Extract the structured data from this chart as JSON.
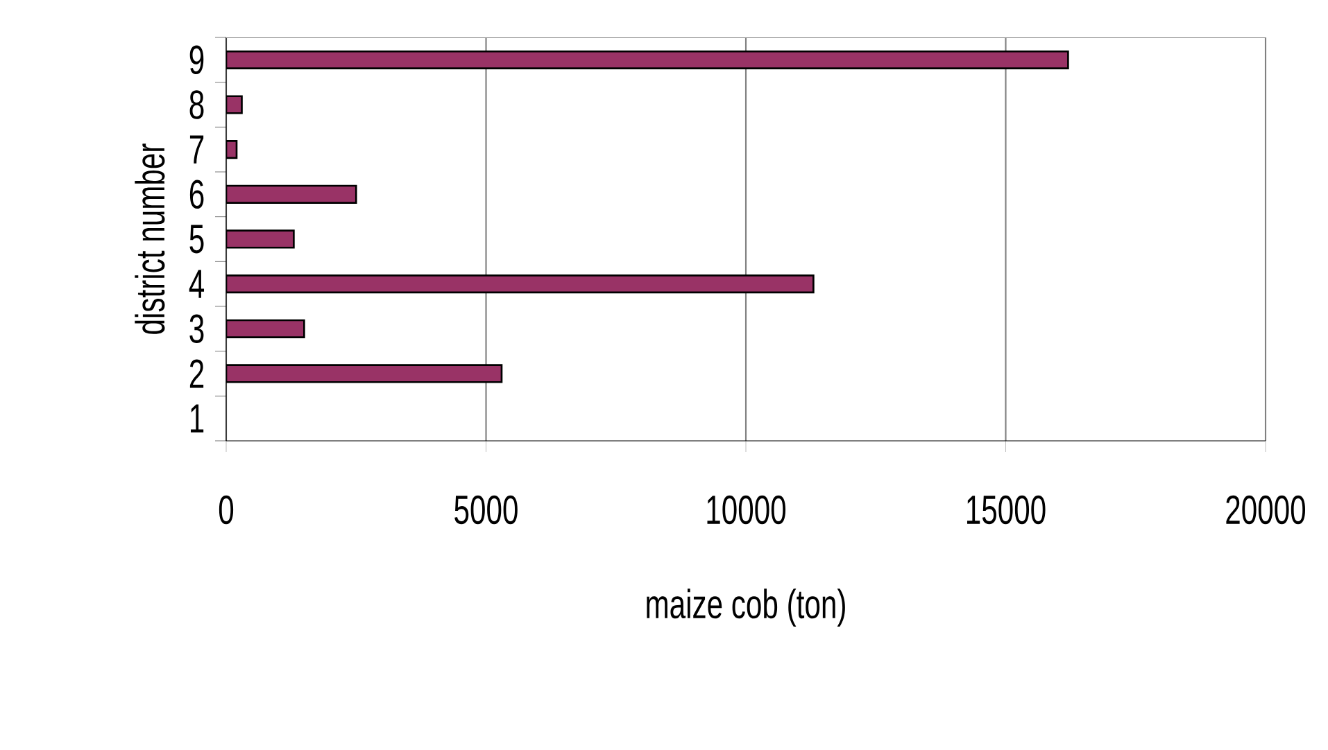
{
  "chart_data": {
    "type": "bar",
    "orientation": "horizontal",
    "xlabel": "maize cob (ton)",
    "ylabel": "district number",
    "categories": [
      "9",
      "8",
      "7",
      "6",
      "5",
      "4",
      "3",
      "2",
      "1"
    ],
    "values": [
      16200,
      300,
      200,
      2500,
      1300,
      11300,
      1500,
      5300,
      null
    ],
    "color": "#993366",
    "xlim": [
      0,
      20000
    ],
    "xticks": [
      0,
      5000,
      10000,
      15000,
      20000
    ],
    "grid": "x"
  }
}
